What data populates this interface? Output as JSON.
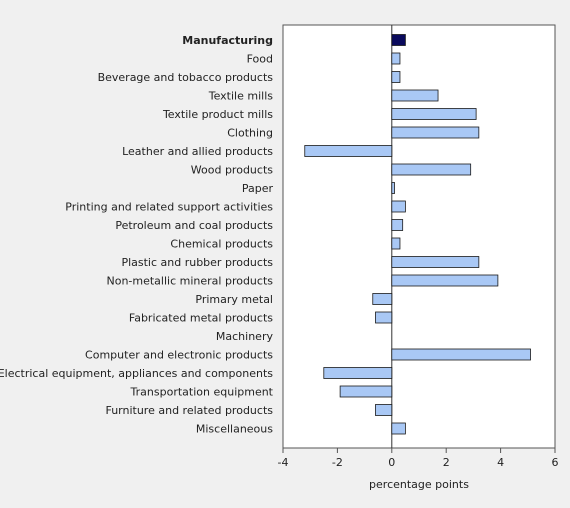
{
  "chart_data": {
    "type": "bar",
    "orientation": "horizontal",
    "xlabel": "percentage points",
    "xlim": [
      -4,
      6
    ],
    "xticks": [
      -4,
      -2,
      0,
      2,
      4,
      6
    ],
    "grid": false,
    "categories": [
      "Manufacturing",
      "Food",
      "Beverage and tobacco products",
      "Textile mills",
      "Textile product mills",
      "Clothing",
      "Leather and allied products",
      "Wood products",
      "Paper",
      "Printing and related support activities",
      "Petroleum and coal products",
      "Chemical products",
      "Plastic and rubber products",
      "Non-metallic mineral products",
      "Primary metal",
      "Fabricated metal products",
      "Machinery",
      "Computer and electronic products",
      "Electrical equipment, appliances and components",
      "Transportation equipment",
      "Furniture and related products",
      "Miscellaneous"
    ],
    "values": [
      0.5,
      0.3,
      0.3,
      1.7,
      3.1,
      3.2,
      -3.2,
      2.9,
      0.1,
      0.5,
      0.4,
      0.3,
      3.2,
      3.9,
      -0.7,
      -0.6,
      0.0,
      5.1,
      -2.5,
      -1.9,
      -0.6,
      0.5
    ],
    "highlight_index": 0,
    "colors": {
      "bar": "#a9c8f5",
      "highlight_bar": "#0a0a5c",
      "bar_stroke": "#1a1a1a",
      "plot_background": "#ffffff",
      "page_background": "#f0f0f0",
      "axis": "#555555"
    }
  }
}
